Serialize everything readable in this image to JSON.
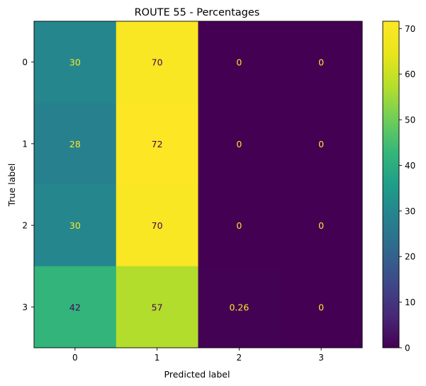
{
  "chart_data": {
    "type": "heatmap",
    "title": "ROUTE 55  - Percentages",
    "xlabel": "Predicted label",
    "ylabel": "True label",
    "x_categories": [
      "0",
      "1",
      "2",
      "3"
    ],
    "y_categories": [
      "0",
      "1",
      "2",
      "3"
    ],
    "values": [
      [
        30,
        70,
        0,
        0
      ],
      [
        28,
        72,
        0,
        0
      ],
      [
        30,
        70,
        0,
        0
      ],
      [
        42,
        57,
        0.26,
        0
      ]
    ],
    "cell_labels": [
      [
        "30",
        "70",
        "0",
        "0"
      ],
      [
        "28",
        "72",
        "0",
        "0"
      ],
      [
        "30",
        "70",
        "0",
        "0"
      ],
      [
        "42",
        "57",
        "0.26",
        "0"
      ]
    ],
    "colormap": "viridis",
    "colorbar": {
      "range": [
        0,
        71.6
      ],
      "ticks": [
        0,
        10,
        20,
        30,
        40,
        50,
        60,
        70
      ],
      "tick_labels": [
        "0",
        "10",
        "20",
        "30",
        "40",
        "50",
        "60",
        "70"
      ]
    },
    "grid": false
  }
}
